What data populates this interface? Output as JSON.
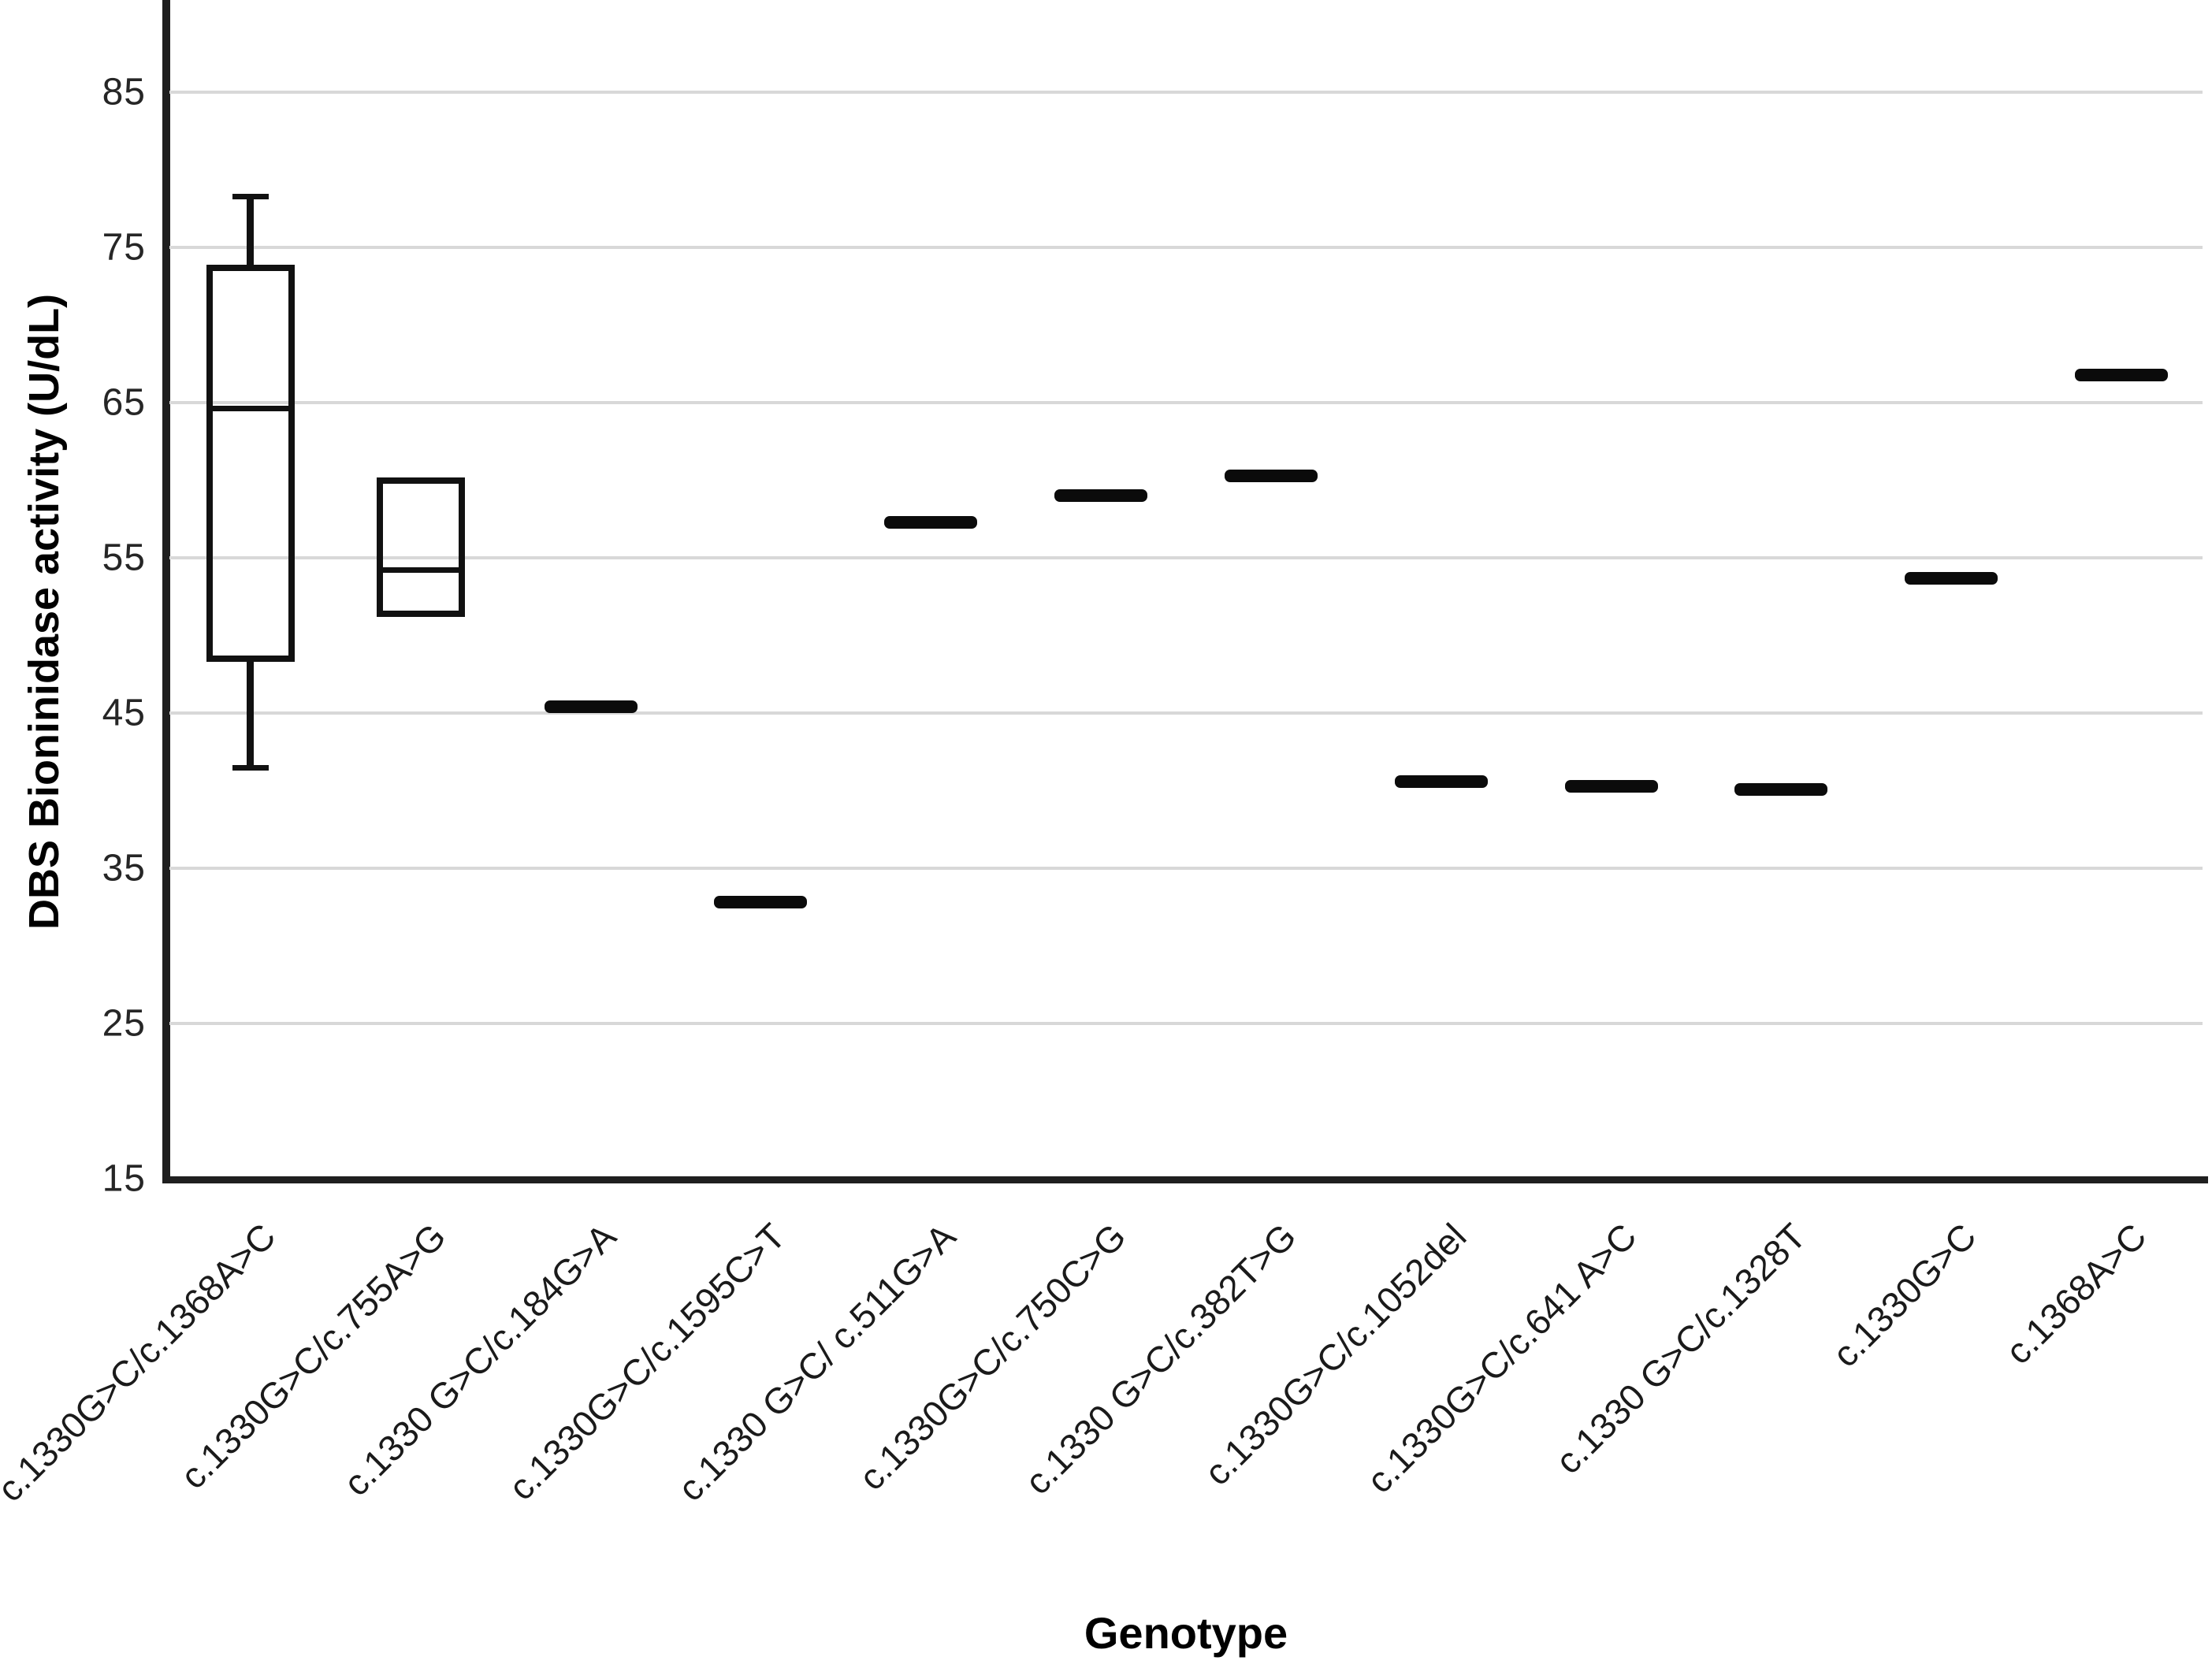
{
  "chart_data": {
    "type": "boxplot",
    "title": "",
    "xlabel": "Genotype",
    "ylabel": "DBS Bioninidase activity (U/dL)",
    "y_ticks": [
      15,
      25,
      35,
      45,
      55,
      65,
      75,
      85
    ],
    "ylim": [
      15,
      90.9
    ],
    "grid": "horizontal-light-gray",
    "legend": "none",
    "categories": [
      "c.1330G>C/c.1368A>C",
      "c.1330G>C/c.755A>G",
      "c.1330 G>C/c.184G>A",
      "c.1330G>C/c.1595C>T",
      "c.1330 G>C/ c.511G>A",
      "c.1330G>C/c.750C>G",
      "c.1330 G>C/c.382T>G",
      "c.1330G>C/c.1052del",
      "c.1330G>C/c.641 A>C",
      "c.1330 G>C/c.1328T",
      "c.1330G>C",
      "c.1368A>C"
    ],
    "series": [
      {
        "label": "c.1330G>C/c.1368A>C",
        "kind": "box",
        "whisker_low": 41.5,
        "q1": 48.3,
        "median": 64.6,
        "q3": 73.9,
        "whisker_high": 78.3
      },
      {
        "label": "c.1330G>C/c.755A>G",
        "kind": "box",
        "q1": 51.2,
        "median": 54.2,
        "q3": 60.2
      },
      {
        "label": "c.1330 G>C/c.184G>A",
        "kind": "single",
        "value": 45.4
      },
      {
        "label": "c.1330G>C/c.1595C>T",
        "kind": "single",
        "value": 32.8
      },
      {
        "label": "c.1330 G>C/ c.511G>A",
        "kind": "single",
        "value": 57.3
      },
      {
        "label": "c.1330G>C/c.750C>G",
        "kind": "single",
        "value": 59.0
      },
      {
        "label": "c.1330 G>C/c.382T>G",
        "kind": "single",
        "value": 60.3
      },
      {
        "label": "c.1330G>C/c.1052del",
        "kind": "single",
        "value": 40.6
      },
      {
        "label": "c.1330G>C/c.641 A>C",
        "kind": "single",
        "value": 40.3
      },
      {
        "label": "c.1330 G>C/c.1328T",
        "kind": "single",
        "value": 40.1
      },
      {
        "label": "c.1330G>C",
        "kind": "single",
        "value": 53.7
      },
      {
        "label": "c.1368A>C",
        "kind": "single",
        "value": 66.8
      }
    ]
  },
  "colors": {
    "background": "#ffffff",
    "axis": "#1f1f1f",
    "box_stroke": "#111111",
    "gridline": "#d8d8d8",
    "tick_text": "#262626",
    "title_text": "#000000"
  }
}
